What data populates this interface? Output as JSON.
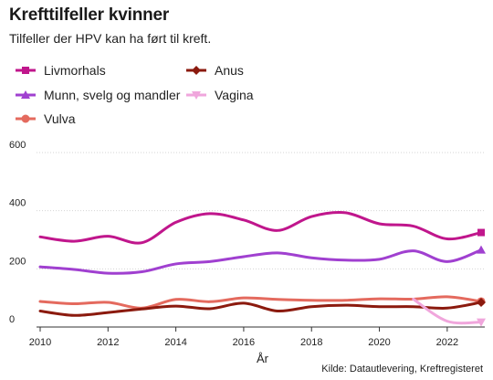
{
  "chart_data": {
    "type": "line",
    "title": "Krefttilfeller kvinner",
    "subtitle": "Tilfeller der HPV kan ha ført til kreft.",
    "xlabel": "År",
    "ylabel": "",
    "source": "Kilde: Datautlevering, Kreftregisteret",
    "xlim": [
      2010,
      2023
    ],
    "ylim": [
      0,
      600
    ],
    "x_ticks": [
      "2010",
      "2012",
      "2014",
      "2016",
      "2018",
      "2020",
      "2022"
    ],
    "y_ticks": [
      "0",
      "200",
      "400",
      "600"
    ],
    "grid": "horizontal",
    "legend_placement": "top-left",
    "x": [
      2010,
      2011,
      2012,
      2013,
      2014,
      2015,
      2016,
      2017,
      2018,
      2019,
      2020,
      2021,
      2022,
      2023
    ],
    "series": [
      {
        "name": "Livmorhals",
        "color": "#c0168c",
        "marker": "square",
        "values": [
          310,
          295,
          312,
          290,
          360,
          390,
          368,
          332,
          380,
          393,
          355,
          347,
          303,
          325
        ]
      },
      {
        "name": "Anus",
        "color": "#8b1a0e",
        "marker": "diamond",
        "values": [
          55,
          40,
          50,
          62,
          72,
          63,
          82,
          55,
          70,
          75,
          70,
          70,
          65,
          85
        ]
      },
      {
        "name": "Munn, svelg og mandler",
        "color": "#a040d0",
        "marker": "triangle",
        "values": [
          207,
          198,
          185,
          190,
          217,
          225,
          242,
          255,
          238,
          230,
          233,
          262,
          225,
          265
        ]
      },
      {
        "name": "Vagina",
        "color": "#f0a6dc",
        "marker": "triangle-down",
        "values": [
          null,
          null,
          null,
          null,
          null,
          null,
          null,
          null,
          null,
          null,
          null,
          96,
          20,
          17
        ]
      },
      {
        "name": "Vulva",
        "color": "#e46a5e",
        "marker": "circle",
        "values": [
          88,
          80,
          85,
          65,
          95,
          87,
          100,
          95,
          92,
          92,
          97,
          96,
          104,
          88
        ]
      }
    ]
  }
}
